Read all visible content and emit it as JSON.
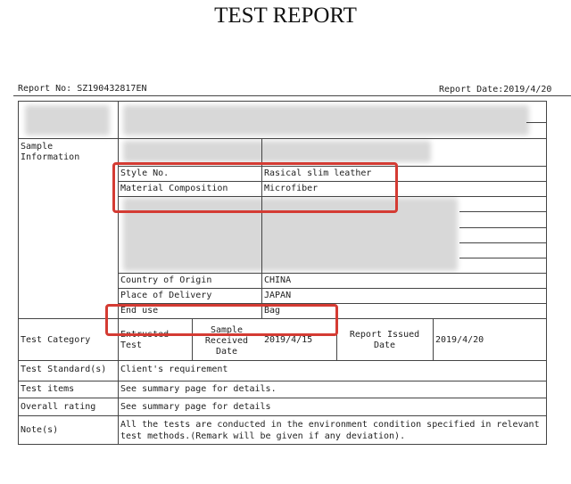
{
  "title": "TEST REPORT",
  "header": {
    "report_no": "Report No: SZ190432817EN",
    "report_date": "Report Date:2019/4/20"
  },
  "sample_info": {
    "label": "Sample Information",
    "rows": [
      {
        "label": "Style No.",
        "value": "Rasical slim leather"
      },
      {
        "label": "Material Composition",
        "value": "Microfiber"
      },
      {
        "label": "Country of Origin",
        "value": "CHINA"
      },
      {
        "label": "Place of Delivery",
        "value": "JAPAN"
      },
      {
        "label": "End use",
        "value": "Bag"
      }
    ]
  },
  "test_category": {
    "label": "Test Category",
    "type": "Entrusted Test",
    "received_label": "Sample Received Date",
    "received_date": "2019/4/15",
    "issued_label": "Report Issued Date",
    "issued_date": "2019/4/20"
  },
  "rows": [
    {
      "label": "Test Standard(s)",
      "value": "Client's requirement"
    },
    {
      "label": "Test items",
      "value": "See summary page for details."
    },
    {
      "label": "Overall rating",
      "value": "See summary page for details"
    },
    {
      "label": "Note(s)",
      "value": "All the tests are conducted in the environment condition specified in relevant test methods.(Remark will be given if any deviation)."
    }
  ],
  "highlight_color": "#d43b33"
}
